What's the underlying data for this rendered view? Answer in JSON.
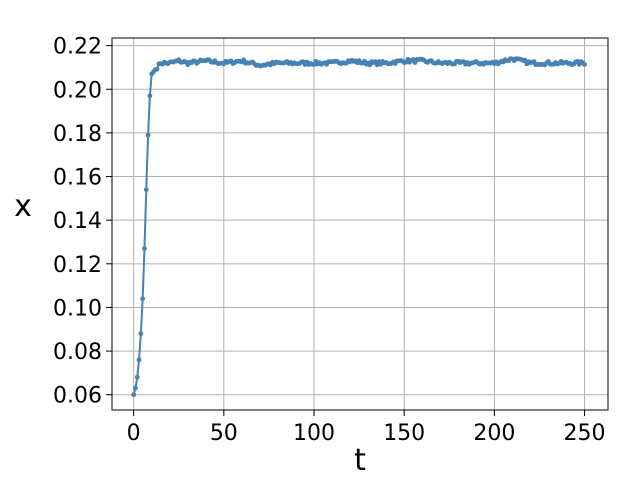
{
  "chart_data": {
    "type": "line",
    "title": "",
    "xlabel": "t",
    "ylabel": "x",
    "xlim": [
      -12,
      263
    ],
    "ylim": [
      0.053,
      0.2235
    ],
    "xticks": [
      0,
      50,
      100,
      150,
      200,
      250
    ],
    "yticks": [
      0.06,
      0.08,
      0.1,
      0.12,
      0.14,
      0.16,
      0.18,
      0.2,
      0.22
    ],
    "ytick_labels": [
      "0.06",
      "0.08",
      "0.10",
      "0.12",
      "0.14",
      "0.16",
      "0.18",
      "0.20",
      "0.22"
    ],
    "grid": true,
    "legend": "none",
    "series": [
      {
        "color": "#4682b4",
        "marker": "circle",
        "x": [
          0,
          1,
          2,
          3,
          4,
          5,
          6,
          7,
          8,
          9,
          10,
          15,
          20,
          25,
          30,
          40,
          50,
          60,
          70,
          80,
          90,
          100,
          110,
          120,
          130,
          140,
          150,
          160,
          170,
          180,
          190,
          200,
          210,
          220,
          230,
          240,
          250
        ],
        "y": [
          0.06,
          0.063,
          0.068,
          0.076,
          0.088,
          0.104,
          0.127,
          0.154,
          0.179,
          0.197,
          0.207,
          0.212,
          0.212,
          0.213,
          0.212,
          0.213,
          0.212,
          0.213,
          0.211,
          0.212,
          0.212,
          0.212,
          0.212,
          0.213,
          0.212,
          0.212,
          0.213,
          0.213,
          0.212,
          0.212,
          0.212,
          0.212,
          0.214,
          0.212,
          0.212,
          0.212,
          0.212
        ]
      }
    ]
  }
}
